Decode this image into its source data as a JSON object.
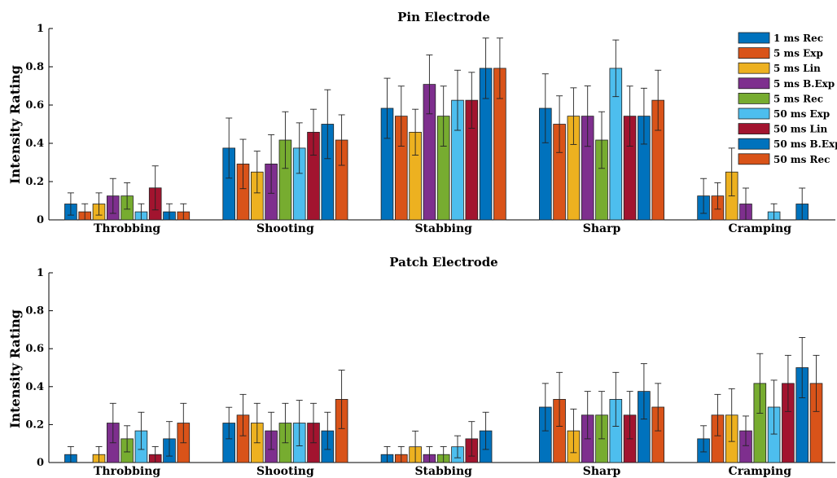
{
  "legend": {
    "colors": [
      "#0072BD",
      "#D95319",
      "#EDB120",
      "#7E2F8E",
      "#77AC30",
      "#4DBEEE",
      "#A2142F",
      "#0072BD",
      "#D95319"
    ]
  },
  "chart_data": [
    {
      "type": "bar",
      "title": "Pin Electrode",
      "xlabel": "",
      "ylabel": "Intensity Rating",
      "ylim": [
        0,
        1
      ],
      "yticks": [
        0,
        0.2,
        0.4,
        0.6,
        0.8,
        1
      ],
      "ytick_labels": [
        "0",
        "0.2",
        "0.4",
        "0.6",
        "0.8",
        "1"
      ],
      "legend_position": "top-right",
      "grid": false,
      "categories": [
        "Throbbing",
        "Shooting",
        "Stabbing",
        "Sharp",
        "Cramping"
      ],
      "series": [
        {
          "name": "1 ms Rec",
          "values": [
            0.083,
            0.375,
            0.583,
            0.583,
            0.125
          ],
          "errors": [
            0.058,
            0.157,
            0.157,
            0.18,
            0.091
          ]
        },
        {
          "name": "5 ms Exp",
          "values": [
            0.042,
            0.292,
            0.542,
            0.5,
            0.125
          ],
          "errors": [
            0.042,
            0.129,
            0.157,
            0.148,
            0.069
          ]
        },
        {
          "name": "5 ms Lin",
          "values": [
            0.083,
            0.25,
            0.458,
            0.542,
            0.25
          ],
          "errors": [
            0.058,
            0.109,
            0.12,
            0.148,
            0.125
          ]
        },
        {
          "name": "5 ms B.Exp",
          "values": [
            0.125,
            0.292,
            0.708,
            0.542,
            0.083
          ],
          "errors": [
            0.091,
            0.153,
            0.154,
            0.158,
            0.083
          ]
        },
        {
          "name": "5 ms Rec",
          "values": [
            0.125,
            0.417,
            0.542,
            0.417,
            0
          ],
          "errors": [
            0.069,
            0.148,
            0.157,
            0.148,
            0
          ]
        },
        {
          "name": "50 ms Exp",
          "values": [
            0.042,
            0.375,
            0.625,
            0.792,
            0.042
          ],
          "errors": [
            0.042,
            0.132,
            0.157,
            0.148,
            0.042
          ]
        },
        {
          "name": "50 ms Lin",
          "values": [
            0.167,
            0.458,
            0.625,
            0.542,
            0
          ],
          "errors": [
            0.115,
            0.12,
            0.146,
            0.157,
            0
          ]
        },
        {
          "name": "50 ms B.Exp",
          "values": [
            0.042,
            0.5,
            0.792,
            0.542,
            0.083
          ],
          "errors": [
            0.042,
            0.18,
            0.158,
            0.146,
            0.083
          ]
        },
        {
          "name": "50 ms Rec",
          "values": [
            0.042,
            0.417,
            0.792,
            0.625,
            0
          ],
          "errors": [
            0.042,
            0.132,
            0.158,
            0.157,
            0
          ]
        }
      ]
    },
    {
      "type": "bar",
      "title": "Patch Electrode",
      "xlabel": "",
      "ylabel": "Intensity Rating",
      "ylim": [
        0,
        1
      ],
      "yticks": [
        0,
        0.2,
        0.4,
        0.6,
        0.8,
        1
      ],
      "ytick_labels": [
        "0",
        "0.2",
        "0.4",
        "0.6",
        "0.8",
        "1"
      ],
      "grid": false,
      "categories": [
        "Throbbing",
        "Shooting",
        "Stabbing",
        "Sharp",
        "Cramping"
      ],
      "series": [
        {
          "name": "1 ms Rec",
          "values": [
            0.042,
            0.208,
            0.042,
            0.292,
            0.125
          ],
          "errors": [
            0.042,
            0.083,
            0.042,
            0.125,
            0.069
          ]
        },
        {
          "name": "5 ms Exp",
          "values": [
            0,
            0.25,
            0.042,
            0.333,
            0.25
          ],
          "errors": [
            0,
            0.109,
            0.042,
            0.142,
            0.109
          ]
        },
        {
          "name": "5 ms Lin",
          "values": [
            0.042,
            0.208,
            0.083,
            0.167,
            0.25
          ],
          "errors": [
            0.042,
            0.104,
            0.083,
            0.115,
            0.139
          ]
        },
        {
          "name": "5 ms B.Exp",
          "values": [
            0.208,
            0.167,
            0.042,
            0.25,
            0.167
          ],
          "errors": [
            0.104,
            0.098,
            0.042,
            0.125,
            0.078
          ]
        },
        {
          "name": "5 ms Rec",
          "values": [
            0.125,
            0.208,
            0.042,
            0.25,
            0.417
          ],
          "errors": [
            0.069,
            0.104,
            0.042,
            0.125,
            0.157
          ]
        },
        {
          "name": "50 ms Exp",
          "values": [
            0.167,
            0.208,
            0.083,
            0.333,
            0.292
          ],
          "errors": [
            0.098,
            0.12,
            0.058,
            0.142,
            0.142
          ]
        },
        {
          "name": "50 ms Lin",
          "values": [
            0.042,
            0.208,
            0.125,
            0.25,
            0.417
          ],
          "errors": [
            0.042,
            0.104,
            0.091,
            0.125,
            0.148
          ]
        },
        {
          "name": "50 ms B.Exp",
          "values": [
            0.125,
            0.167,
            0.167,
            0.375,
            0.5
          ],
          "errors": [
            0.091,
            0.098,
            0.098,
            0.146,
            0.159
          ]
        },
        {
          "name": "50 ms Rec",
          "values": [
            0.208,
            0.333,
            0,
            0.292,
            0.417
          ],
          "errors": [
            0.104,
            0.154,
            0,
            0.125,
            0.148
          ]
        }
      ]
    }
  ]
}
